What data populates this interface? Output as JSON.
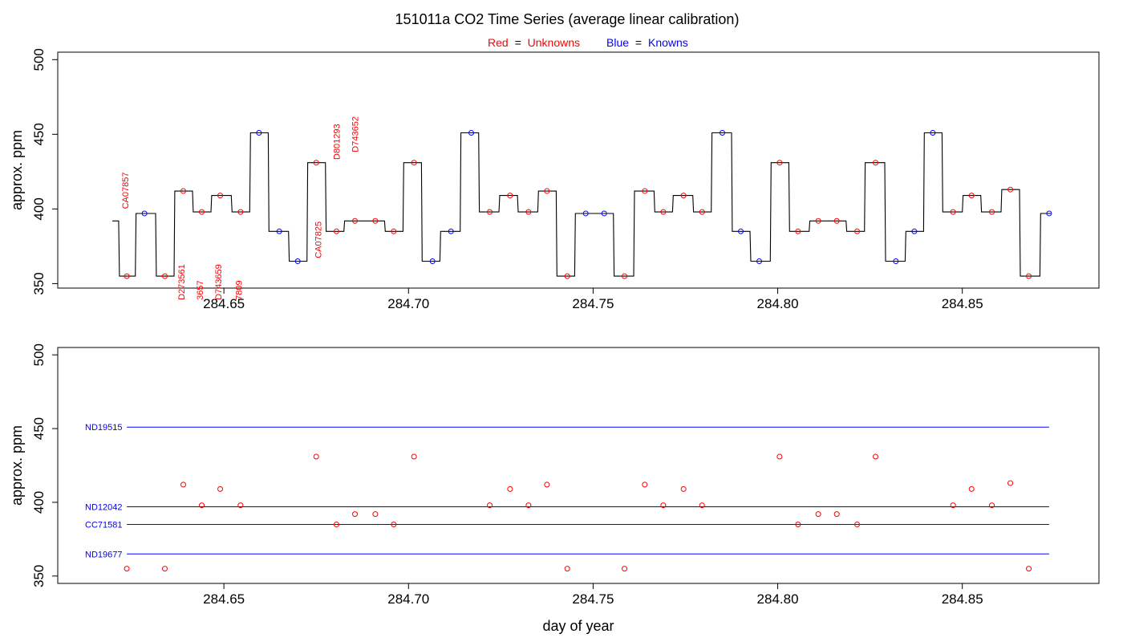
{
  "title": "151011a   CO2 Time Series (average linear calibration)",
  "legend": {
    "red_word": "Red",
    "red_label": "Unknowns",
    "blue_word": "Blue",
    "blue_label": "Knowns",
    "equals": "="
  },
  "colors": {
    "unknown": "#ff0000",
    "known": "#0000ff",
    "trace": "#000000",
    "reference_line": "#0000ff"
  },
  "chart_data": [
    {
      "type": "line",
      "name": "top-panel",
      "xlabel": "",
      "ylabel": "approx. ppm",
      "xlim": [
        284.605,
        284.887
      ],
      "ylim": [
        347,
        505
      ],
      "x_ticks": [
        284.65,
        284.7,
        284.75,
        284.8,
        284.85
      ],
      "x_tick_labels": [
        "284.65",
        "284.70",
        "284.75",
        "284.80",
        "284.85"
      ],
      "y_ticks": [
        350,
        400,
        450,
        500
      ],
      "y_tick_labels": [
        "350",
        "400",
        "450",
        "500"
      ],
      "trace_segments": [
        {
          "x0": 284.6198,
          "x1": 284.6215,
          "y": 392
        },
        {
          "x0": 284.6217,
          "x1": 284.626,
          "y": 355
        },
        {
          "x0": 284.6262,
          "x1": 284.6315,
          "y": 397
        },
        {
          "x0": 284.6317,
          "x1": 284.6365,
          "y": 355
        },
        {
          "x0": 284.6367,
          "x1": 284.6415,
          "y": 412
        },
        {
          "x0": 284.6417,
          "x1": 284.6465,
          "y": 398
        },
        {
          "x0": 284.6467,
          "x1": 284.652,
          "y": 409
        },
        {
          "x0": 284.6522,
          "x1": 284.657,
          "y": 398
        },
        {
          "x0": 284.6572,
          "x1": 284.662,
          "y": 451
        },
        {
          "x0": 284.6622,
          "x1": 284.6675,
          "y": 385
        },
        {
          "x0": 284.6677,
          "x1": 284.6725,
          "y": 365
        },
        {
          "x0": 284.6727,
          "x1": 284.6775,
          "y": 431
        },
        {
          "x0": 284.6777,
          "x1": 284.6825,
          "y": 385
        },
        {
          "x0": 284.6827,
          "x1": 284.6935,
          "y": 392
        },
        {
          "x0": 284.6937,
          "x1": 284.6985,
          "y": 385
        },
        {
          "x0": 284.6987,
          "x1": 284.7035,
          "y": 431
        },
        {
          "x0": 284.7037,
          "x1": 284.7085,
          "y": 365
        },
        {
          "x0": 284.7087,
          "x1": 284.714,
          "y": 385
        },
        {
          "x0": 284.7142,
          "x1": 284.719,
          "y": 451
        },
        {
          "x0": 284.7192,
          "x1": 284.7245,
          "y": 398
        },
        {
          "x0": 284.7247,
          "x1": 284.7295,
          "y": 409
        },
        {
          "x0": 284.7297,
          "x1": 284.735,
          "y": 398
        },
        {
          "x0": 284.7352,
          "x1": 284.74,
          "y": 412
        },
        {
          "x0": 284.7402,
          "x1": 284.745,
          "y": 355
        },
        {
          "x0": 284.7452,
          "x1": 284.7555,
          "y": 397
        },
        {
          "x0": 284.7557,
          "x1": 284.761,
          "y": 355
        },
        {
          "x0": 284.7612,
          "x1": 284.7665,
          "y": 412
        },
        {
          "x0": 284.7667,
          "x1": 284.7715,
          "y": 398
        },
        {
          "x0": 284.7717,
          "x1": 284.777,
          "y": 409
        },
        {
          "x0": 284.7772,
          "x1": 284.782,
          "y": 398
        },
        {
          "x0": 284.7822,
          "x1": 284.7875,
          "y": 451
        },
        {
          "x0": 284.7877,
          "x1": 284.7925,
          "y": 385
        },
        {
          "x0": 284.7927,
          "x1": 284.798,
          "y": 365
        },
        {
          "x0": 284.7982,
          "x1": 284.803,
          "y": 431
        },
        {
          "x0": 284.8032,
          "x1": 284.8085,
          "y": 385
        },
        {
          "x0": 284.8087,
          "x1": 284.8185,
          "y": 392
        },
        {
          "x0": 284.8187,
          "x1": 284.8235,
          "y": 385
        },
        {
          "x0": 284.8237,
          "x1": 284.829,
          "y": 431
        },
        {
          "x0": 284.8292,
          "x1": 284.8345,
          "y": 365
        },
        {
          "x0": 284.8347,
          "x1": 284.8395,
          "y": 385
        },
        {
          "x0": 284.8397,
          "x1": 284.8445,
          "y": 451
        },
        {
          "x0": 284.8447,
          "x1": 284.85,
          "y": 398
        },
        {
          "x0": 284.8502,
          "x1": 284.855,
          "y": 409
        },
        {
          "x0": 284.8552,
          "x1": 284.8605,
          "y": 398
        },
        {
          "x0": 284.8607,
          "x1": 284.8655,
          "y": 413
        },
        {
          "x0": 284.8657,
          "x1": 284.871,
          "y": 355
        },
        {
          "x0": 284.8712,
          "x1": 284.874,
          "y": 397
        }
      ],
      "unknown_points": [
        {
          "x": 284.6237,
          "y": 355
        },
        {
          "x": 284.634,
          "y": 355
        },
        {
          "x": 284.639,
          "y": 412
        },
        {
          "x": 284.644,
          "y": 398
        },
        {
          "x": 284.649,
          "y": 409
        },
        {
          "x": 284.6545,
          "y": 398
        },
        {
          "x": 284.675,
          "y": 431
        },
        {
          "x": 284.6805,
          "y": 385
        },
        {
          "x": 284.6855,
          "y": 392
        },
        {
          "x": 284.691,
          "y": 392
        },
        {
          "x": 284.696,
          "y": 385
        },
        {
          "x": 284.7015,
          "y": 431
        },
        {
          "x": 284.722,
          "y": 398
        },
        {
          "x": 284.7275,
          "y": 409
        },
        {
          "x": 284.7325,
          "y": 398
        },
        {
          "x": 284.7375,
          "y": 412
        },
        {
          "x": 284.743,
          "y": 355
        },
        {
          "x": 284.7585,
          "y": 355
        },
        {
          "x": 284.764,
          "y": 412
        },
        {
          "x": 284.769,
          "y": 398
        },
        {
          "x": 284.7745,
          "y": 409
        },
        {
          "x": 284.7795,
          "y": 398
        },
        {
          "x": 284.8005,
          "y": 431
        },
        {
          "x": 284.8055,
          "y": 385
        },
        {
          "x": 284.811,
          "y": 392
        },
        {
          "x": 284.816,
          "y": 392
        },
        {
          "x": 284.8215,
          "y": 385
        },
        {
          "x": 284.8265,
          "y": 431
        },
        {
          "x": 284.8475,
          "y": 398
        },
        {
          "x": 284.8525,
          "y": 409
        },
        {
          "x": 284.858,
          "y": 398
        },
        {
          "x": 284.863,
          "y": 413
        },
        {
          "x": 284.868,
          "y": 355
        }
      ],
      "known_points": [
        {
          "x": 284.6285,
          "y": 397
        },
        {
          "x": 284.6595,
          "y": 451
        },
        {
          "x": 284.665,
          "y": 385
        },
        {
          "x": 284.67,
          "y": 365
        },
        {
          "x": 284.7065,
          "y": 365
        },
        {
          "x": 284.7115,
          "y": 385
        },
        {
          "x": 284.717,
          "y": 451
        },
        {
          "x": 284.748,
          "y": 397
        },
        {
          "x": 284.753,
          "y": 397
        },
        {
          "x": 284.785,
          "y": 451
        },
        {
          "x": 284.79,
          "y": 385
        },
        {
          "x": 284.795,
          "y": 365
        },
        {
          "x": 284.832,
          "y": 365
        },
        {
          "x": 284.837,
          "y": 385
        },
        {
          "x": 284.842,
          "y": 451
        },
        {
          "x": 284.8735,
          "y": 397
        }
      ],
      "annotations": [
        {
          "text": "CA07857",
          "x": 284.6232,
          "y": 400
        },
        {
          "text": "D273561",
          "x": 284.6385,
          "y": 339
        },
        {
          "text": "3657",
          "x": 284.6435,
          "y": 339
        },
        {
          "text": "D743659",
          "x": 284.6485,
          "y": 339
        },
        {
          "text": "7809",
          "x": 284.654,
          "y": 339
        },
        {
          "text": "CA07825",
          "x": 284.6755,
          "y": 367
        },
        {
          "text": "D801293",
          "x": 284.6805,
          "y": 433
        },
        {
          "text": "D743652",
          "x": 284.6855,
          "y": 438
        }
      ]
    },
    {
      "type": "scatter",
      "name": "bottom-panel",
      "xlabel": "day of year",
      "ylabel": "approx. ppm",
      "xlim": [
        284.605,
        284.887
      ],
      "ylim": [
        345,
        505
      ],
      "x_ticks": [
        284.65,
        284.7,
        284.75,
        284.8,
        284.85
      ],
      "x_tick_labels": [
        "284.65",
        "284.70",
        "284.75",
        "284.80",
        "284.85"
      ],
      "y_ticks": [
        350,
        400,
        450,
        500
      ],
      "y_tick_labels": [
        "350",
        "400",
        "450",
        "500"
      ],
      "reference_lines": [
        {
          "label": "ND19515",
          "y": 451
        },
        {
          "label": "ND12042",
          "y": 397
        },
        {
          "label": "CC71581",
          "y": 385
        },
        {
          "label": "ND19677",
          "y": 365
        }
      ],
      "reference_line_x_range": [
        284.6237,
        284.8735
      ],
      "unknown_points": [
        {
          "x": 284.6237,
          "y": 355
        },
        {
          "x": 284.634,
          "y": 355
        },
        {
          "x": 284.639,
          "y": 412
        },
        {
          "x": 284.644,
          "y": 398
        },
        {
          "x": 284.649,
          "y": 409
        },
        {
          "x": 284.6545,
          "y": 398
        },
        {
          "x": 284.675,
          "y": 431
        },
        {
          "x": 284.6805,
          "y": 385
        },
        {
          "x": 284.6855,
          "y": 392
        },
        {
          "x": 284.691,
          "y": 392
        },
        {
          "x": 284.696,
          "y": 385
        },
        {
          "x": 284.7015,
          "y": 431
        },
        {
          "x": 284.722,
          "y": 398
        },
        {
          "x": 284.7275,
          "y": 409
        },
        {
          "x": 284.7325,
          "y": 398
        },
        {
          "x": 284.7375,
          "y": 412
        },
        {
          "x": 284.743,
          "y": 355
        },
        {
          "x": 284.7585,
          "y": 355
        },
        {
          "x": 284.764,
          "y": 412
        },
        {
          "x": 284.769,
          "y": 398
        },
        {
          "x": 284.7745,
          "y": 409
        },
        {
          "x": 284.7795,
          "y": 398
        },
        {
          "x": 284.8005,
          "y": 431
        },
        {
          "x": 284.8055,
          "y": 385
        },
        {
          "x": 284.811,
          "y": 392
        },
        {
          "x": 284.816,
          "y": 392
        },
        {
          "x": 284.8215,
          "y": 385
        },
        {
          "x": 284.8265,
          "y": 431
        },
        {
          "x": 284.8475,
          "y": 398
        },
        {
          "x": 284.8525,
          "y": 409
        },
        {
          "x": 284.858,
          "y": 398
        },
        {
          "x": 284.863,
          "y": 413
        },
        {
          "x": 284.868,
          "y": 355
        }
      ]
    }
  ]
}
